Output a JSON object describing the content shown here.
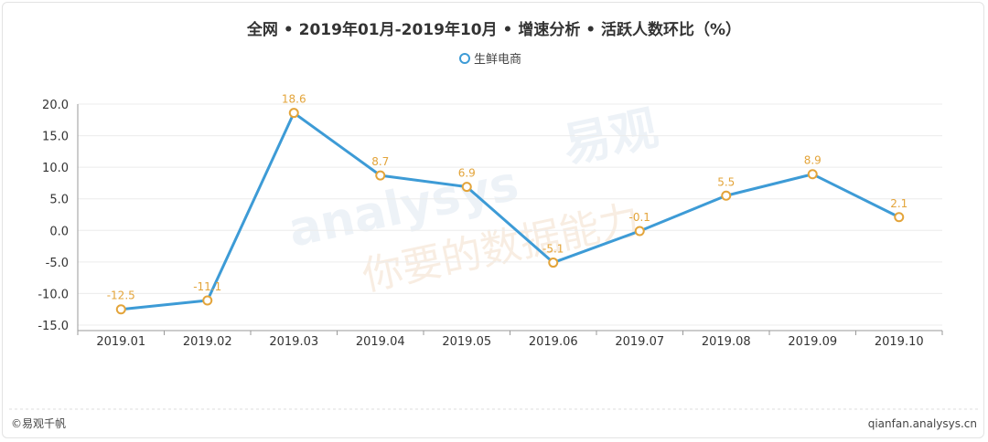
{
  "chart_data": {
    "type": "line",
    "title": "全网 • 2019年01月-2019年10月 • 增速分析 • 活跃人数环比（%）",
    "categories": [
      "2019.01",
      "2019.02",
      "2019.03",
      "2019.04",
      "2019.05",
      "2019.06",
      "2019.07",
      "2019.08",
      "2019.09",
      "2019.10"
    ],
    "series": [
      {
        "name": "生鲜电商",
        "values": [
          -12.5,
          -11.1,
          18.6,
          8.7,
          6.9,
          -5.1,
          -0.1,
          5.5,
          8.9,
          2.1
        ]
      }
    ],
    "data_labels": [
      "-12.5",
      "-11.1",
      "18.6",
      "8.7",
      "6.9",
      "-5.1",
      "-0.1",
      "5.5",
      "8.9",
      "2.1"
    ],
    "y_ticks": [
      "20.0",
      "15.0",
      "10.0",
      "5.0",
      "0.0",
      "-5.0",
      "-10.0",
      "-15.0"
    ],
    "y_tick_values": [
      20,
      15,
      10,
      5,
      0,
      -5,
      -10,
      -15
    ],
    "ylim": [
      -15,
      20
    ],
    "legend_position": "top-center",
    "grid": true,
    "colors": {
      "line": "#3d9bd6",
      "marker_edge": "#e3a43a",
      "label": "#e3a43a"
    }
  },
  "watermark": {
    "brand": "易观",
    "latin": "analysys",
    "slogan": "你要的数据能力"
  },
  "footer": {
    "left": "©易观千帆",
    "right": "qianfan.analysys.cn"
  }
}
